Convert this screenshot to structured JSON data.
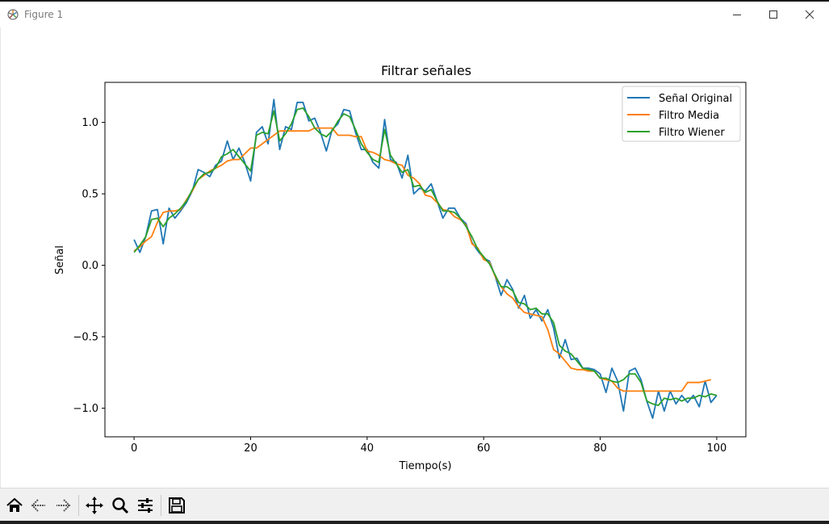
{
  "window": {
    "title": "Figure 1"
  },
  "chart_data": {
    "type": "line",
    "title": "Filtrar señales",
    "xlabel": "Tiempo(s)",
    "ylabel": "Señal",
    "xlim": [
      -5,
      105
    ],
    "ylim": [
      -1.2,
      1.28
    ],
    "xticks": [
      0,
      20,
      40,
      60,
      80,
      100
    ],
    "xtick_labels": [
      "0",
      "20",
      "40",
      "60",
      "80",
      "100"
    ],
    "yticks": [
      1.0,
      0.5,
      0.0,
      -0.5,
      -1.0
    ],
    "ytick_labels": [
      "1.0",
      "0.5",
      "0.0",
      "−0.5",
      "−1.0"
    ],
    "grid": false,
    "legend_position": "upper right",
    "series": [
      {
        "name": "Señal Original",
        "color": "#1f77b4",
        "x": [
          0,
          1,
          2,
          3,
          4,
          5,
          6,
          7,
          8,
          9,
          10,
          11,
          12,
          13,
          14,
          15,
          16,
          17,
          18,
          19,
          20,
          21,
          22,
          23,
          24,
          25,
          26,
          27,
          28,
          29,
          30,
          31,
          32,
          33,
          34,
          35,
          36,
          37,
          38,
          39,
          40,
          41,
          42,
          43,
          44,
          45,
          46,
          47,
          48,
          49,
          50,
          51,
          52,
          53,
          54,
          55,
          56,
          57,
          58,
          59,
          60,
          61,
          62,
          63,
          64,
          65,
          66,
          67,
          68,
          69,
          70,
          71,
          72,
          73,
          74,
          75,
          76,
          77,
          78,
          79,
          80,
          81,
          82,
          83,
          84,
          85,
          86,
          87,
          88,
          89,
          90,
          91,
          92,
          93,
          94,
          95,
          96,
          97,
          98,
          99,
          100
        ],
        "y": [
          0.18,
          0.09,
          0.2,
          0.38,
          0.39,
          0.15,
          0.4,
          0.33,
          0.38,
          0.44,
          0.52,
          0.67,
          0.65,
          0.62,
          0.7,
          0.73,
          0.87,
          0.74,
          0.82,
          0.72,
          0.59,
          0.93,
          0.97,
          0.85,
          1.16,
          0.81,
          0.97,
          0.95,
          1.14,
          1.14,
          1.01,
          1.03,
          0.93,
          0.8,
          0.95,
          0.99,
          1.09,
          1.08,
          0.93,
          0.81,
          0.81,
          0.72,
          0.68,
          1.02,
          0.74,
          0.72,
          0.61,
          0.77,
          0.5,
          0.54,
          0.52,
          0.57,
          0.45,
          0.33,
          0.4,
          0.4,
          0.33,
          0.29,
          0.16,
          0.1,
          0.05,
          0.03,
          -0.08,
          -0.21,
          -0.1,
          -0.17,
          -0.3,
          -0.21,
          -0.37,
          -0.31,
          -0.39,
          -0.31,
          -0.44,
          -0.65,
          -0.52,
          -0.66,
          -0.65,
          -0.72,
          -0.72,
          -0.73,
          -0.76,
          -0.89,
          -0.72,
          -0.81,
          -1.02,
          -0.74,
          -0.72,
          -0.8,
          -0.95,
          -1.07,
          -0.88,
          -1.02,
          -0.88,
          -0.97,
          -0.91,
          -0.96,
          -0.91,
          -0.99,
          -0.81,
          -0.96,
          -0.91
        ]
      },
      {
        "name": "Filtro Media",
        "color": "#ff7f0e",
        "x": [
          0,
          1,
          2,
          3,
          4,
          5,
          6,
          7,
          8,
          9,
          10,
          11,
          12,
          13,
          14,
          15,
          16,
          17,
          18,
          19,
          20,
          21,
          22,
          23,
          24,
          25,
          26,
          27,
          28,
          29,
          30,
          31,
          32,
          33,
          34,
          35,
          36,
          37,
          38,
          39,
          40,
          41,
          42,
          43,
          44,
          45,
          46,
          47,
          48,
          49,
          50,
          51,
          52,
          53,
          54,
          55,
          56,
          57,
          58,
          59,
          60,
          61,
          62,
          63,
          64,
          65,
          66,
          67,
          68,
          69,
          70,
          71,
          72,
          73,
          74,
          75,
          76,
          77,
          78,
          79,
          80,
          81,
          82,
          83,
          84,
          85,
          86,
          87,
          88,
          89,
          90,
          91,
          92,
          93,
          94,
          95,
          96,
          97,
          98,
          99
        ],
        "y": [
          0.1,
          0.13,
          0.17,
          0.2,
          0.3,
          0.37,
          0.38,
          0.38,
          0.39,
          0.46,
          0.52,
          0.6,
          0.63,
          0.66,
          0.68,
          0.7,
          0.73,
          0.74,
          0.74,
          0.78,
          0.82,
          0.82,
          0.85,
          0.88,
          0.91,
          0.94,
          0.94,
          0.94,
          0.94,
          0.94,
          0.94,
          0.96,
          0.96,
          0.96,
          0.96,
          0.91,
          0.91,
          0.91,
          0.9,
          0.9,
          0.8,
          0.79,
          0.77,
          0.74,
          0.73,
          0.71,
          0.7,
          0.63,
          0.61,
          0.57,
          0.49,
          0.48,
          0.44,
          0.39,
          0.38,
          0.34,
          0.32,
          0.28,
          0.15,
          0.12,
          0.04,
          0.02,
          -0.08,
          -0.15,
          -0.2,
          -0.23,
          -0.29,
          -0.33,
          -0.34,
          -0.35,
          -0.36,
          -0.45,
          -0.59,
          -0.62,
          -0.67,
          -0.72,
          -0.73,
          -0.73,
          -0.74,
          -0.74,
          -0.79,
          -0.8,
          -0.81,
          -0.86,
          -0.88,
          -0.88,
          -0.88,
          -0.88,
          -0.88,
          -0.88,
          -0.88,
          -0.88,
          -0.88,
          -0.88,
          -0.88,
          -0.82,
          -0.82,
          -0.82,
          -0.81,
          -0.8
        ]
      },
      {
        "name": "Filtro Wiener",
        "color": "#2ca02c",
        "x": [
          0,
          1,
          2,
          3,
          4,
          5,
          6,
          7,
          8,
          9,
          10,
          11,
          12,
          13,
          14,
          15,
          16,
          17,
          18,
          19,
          20,
          21,
          22,
          23,
          24,
          25,
          26,
          27,
          28,
          29,
          30,
          31,
          32,
          33,
          34,
          35,
          36,
          37,
          38,
          39,
          40,
          41,
          42,
          43,
          44,
          45,
          46,
          47,
          48,
          49,
          50,
          51,
          52,
          53,
          54,
          55,
          56,
          57,
          58,
          59,
          60,
          61,
          62,
          63,
          64,
          65,
          66,
          67,
          68,
          69,
          70,
          71,
          72,
          73,
          74,
          75,
          76,
          77,
          78,
          79,
          80,
          81,
          82,
          83,
          84,
          85,
          86,
          87,
          88,
          89,
          90,
          91,
          92,
          93,
          94,
          95,
          96,
          97,
          98,
          99,
          100
        ],
        "y": [
          0.09,
          0.14,
          0.2,
          0.32,
          0.33,
          0.27,
          0.33,
          0.36,
          0.4,
          0.45,
          0.53,
          0.6,
          0.64,
          0.65,
          0.68,
          0.76,
          0.78,
          0.81,
          0.76,
          0.71,
          0.66,
          0.91,
          0.93,
          0.92,
          1.08,
          0.87,
          0.92,
          0.99,
          1.09,
          1.1,
          1.04,
          0.96,
          0.92,
          0.9,
          0.94,
          1.01,
          1.06,
          1.04,
          0.95,
          0.85,
          0.79,
          0.74,
          0.72,
          0.95,
          0.77,
          0.71,
          0.65,
          0.67,
          0.55,
          0.56,
          0.51,
          0.53,
          0.45,
          0.38,
          0.38,
          0.37,
          0.33,
          0.27,
          0.2,
          0.11,
          0.06,
          0.01,
          -0.07,
          -0.15,
          -0.15,
          -0.18,
          -0.26,
          -0.27,
          -0.31,
          -0.3,
          -0.34,
          -0.34,
          -0.4,
          -0.56,
          -0.6,
          -0.62,
          -0.67,
          -0.72,
          -0.73,
          -0.74,
          -0.79,
          -0.79,
          -0.81,
          -0.82,
          -0.8,
          -0.76,
          -0.76,
          -0.82,
          -0.95,
          -0.97,
          -0.98,
          -0.93,
          -0.94,
          -0.93,
          -0.95,
          -0.93,
          -0.93,
          -0.91,
          -0.92,
          -0.9,
          -0.91
        ]
      }
    ]
  },
  "toolbar": {
    "buttons": [
      {
        "name": "home-button",
        "icon": "home-icon"
      },
      {
        "name": "back-button",
        "icon": "arrow-left-icon"
      },
      {
        "name": "forward-button",
        "icon": "arrow-right-icon"
      },
      {
        "name": "pan-button",
        "icon": "move-icon"
      },
      {
        "name": "zoom-button",
        "icon": "magnifier-icon"
      },
      {
        "name": "configure-subplots-button",
        "icon": "sliders-icon"
      },
      {
        "name": "save-button",
        "icon": "floppy-disk-icon"
      }
    ]
  }
}
